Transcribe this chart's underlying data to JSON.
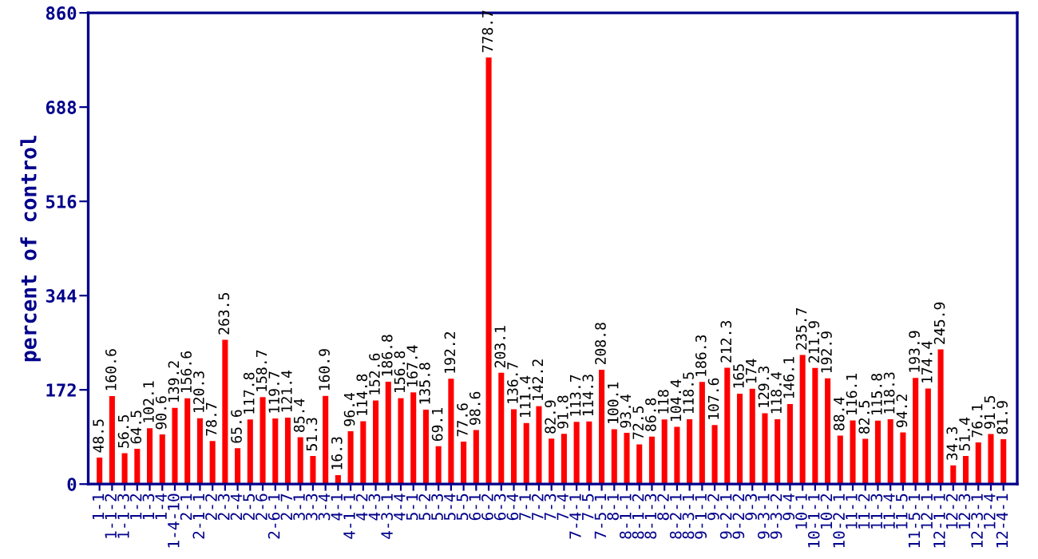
{
  "chart_data": {
    "type": "bar",
    "ylabel": "percent of control",
    "categories": [
      "1-1",
      "1-1-2",
      "1-1-3",
      "1-2",
      "1-3",
      "1-4",
      "1-4-10",
      "2-1",
      "2-1-1",
      "2-2",
      "2-3",
      "2-4",
      "2-5",
      "2-6",
      "2-6-1",
      "2-7",
      "3-1",
      "3-3",
      "3-4",
      "4-1",
      "4-1-1",
      "4-2",
      "4-3",
      "4-3-1",
      "4-4",
      "5-1",
      "5-2",
      "5-3",
      "5-4",
      "5-5",
      "6-1",
      "6-2",
      "6-3",
      "6-4",
      "7-1",
      "7-2",
      "7-3",
      "7-4",
      "7-4-1",
      "7-5",
      "7-5-1",
      "8-1",
      "8-1-1",
      "8-1-2",
      "8-1-3",
      "8-2",
      "8-2-1",
      "8-3-1",
      "9-1-1",
      "9-2",
      "9-2-1",
      "9-2-2",
      "9-3",
      "9-3-1",
      "9-3-2",
      "9-4",
      "10-1",
      "10-1-1",
      "10-2",
      "10-2-1",
      "11-1",
      "11-2",
      "11-3",
      "11-4",
      "11-5",
      "11-5-1",
      "12-1",
      "12-1-1",
      "12-2",
      "12-3",
      "12-3-1",
      "12-4",
      "12-4-1"
    ],
    "values": [
      48.5,
      160.6,
      56.5,
      64.5,
      102.1,
      90.6,
      139.2,
      156.6,
      120.3,
      78.7,
      263.5,
      65.6,
      117.8,
      158.7,
      119.7,
      121.4,
      85.4,
      51.3,
      160.9,
      16.3,
      96.4,
      114.8,
      152.6,
      186.8,
      156.8,
      167.4,
      135.8,
      69.1,
      192.2,
      77.6,
      98.6,
      778.7,
      203.1,
      136.7,
      111.4,
      142.2,
      82.9,
      91.8,
      113.7,
      114.3,
      208.8,
      100.1,
      93.4,
      72.5,
      86.8,
      118,
      104.4,
      118.5,
      186.3,
      107.6,
      212.3,
      165,
      174,
      129.3,
      118.4,
      146.1,
      235.7,
      211.9,
      192.9,
      88.4,
      116.1,
      82.5,
      115.8,
      118.3,
      94.2,
      193.9,
      174.4,
      245.9,
      34.3,
      51.4,
      76.1,
      91.5,
      81.9
    ],
    "color": "#ff0000",
    "data_labels": true,
    "ylim": [
      0,
      860
    ],
    "yticks": [
      0,
      172,
      344,
      516,
      688,
      860
    ],
    "grid": false,
    "legend": false
  }
}
